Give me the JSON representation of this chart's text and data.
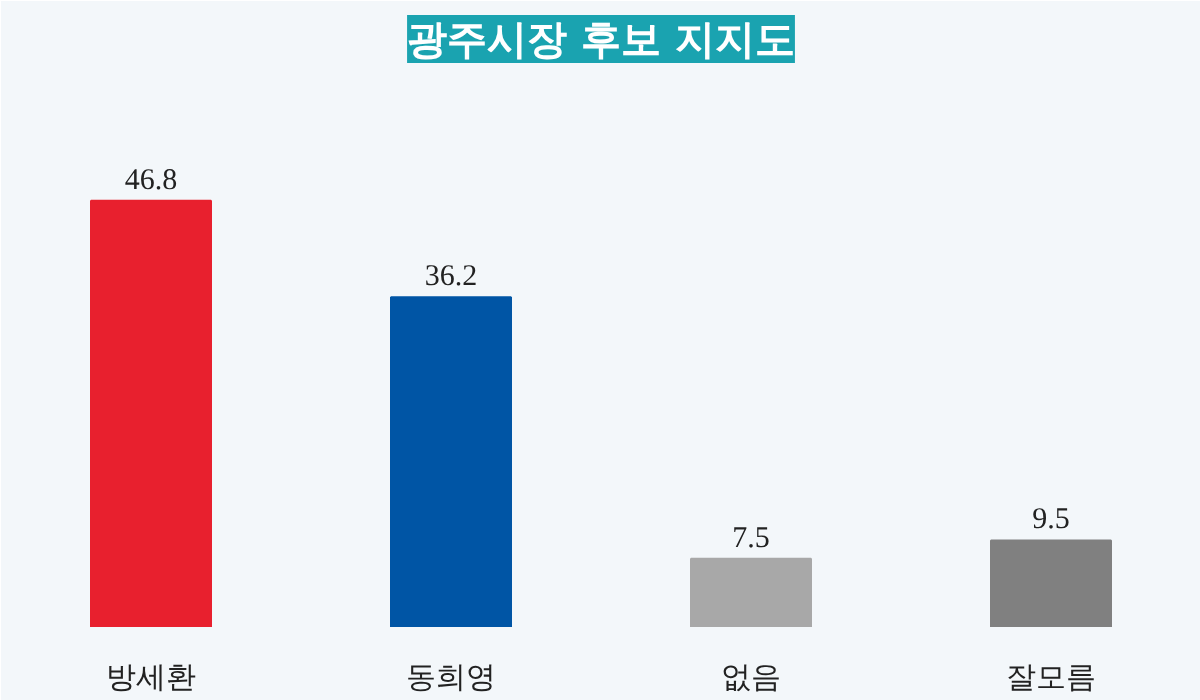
{
  "chart_data": {
    "type": "bar",
    "title": "광주시장 후보 지지도",
    "categories": [
      "방세환",
      "동희영",
      "없음",
      "잘모름"
    ],
    "values": [
      46.8,
      36.2,
      7.5,
      9.5
    ],
    "colors": [
      "#e8202e",
      "#0055a5",
      "#a8a8a8",
      "#808080"
    ],
    "data_labels": true,
    "grid": false
  }
}
